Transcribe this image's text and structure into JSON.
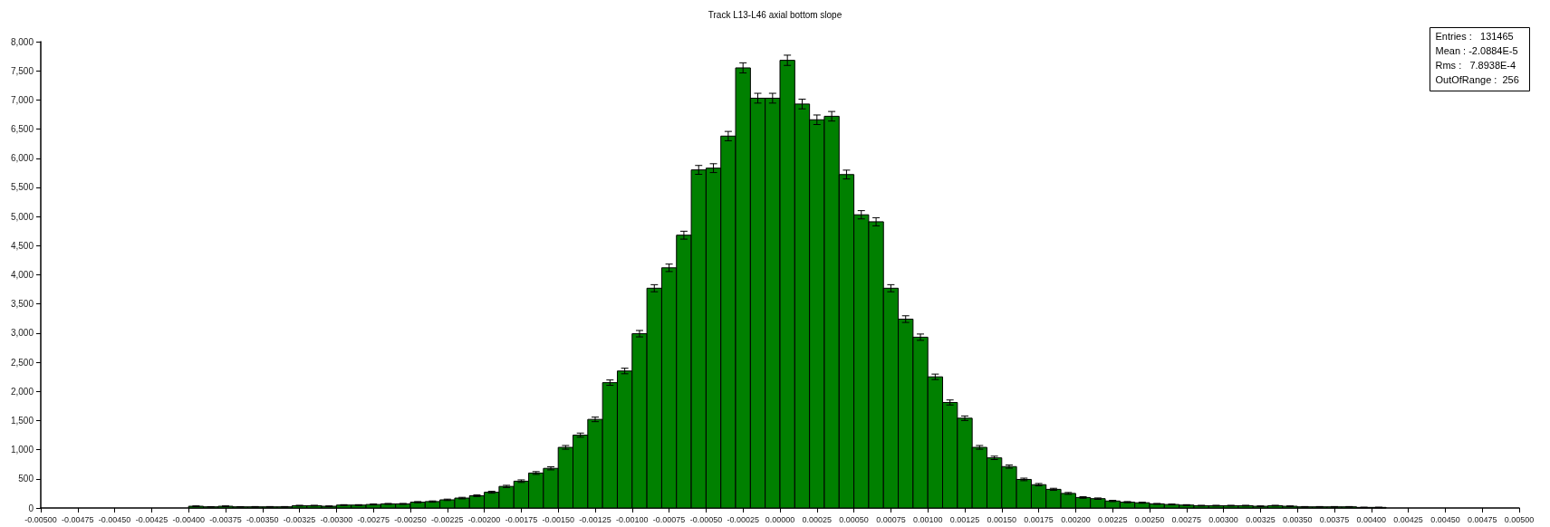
{
  "chart_data": {
    "type": "histogram",
    "title": "Track L13-L46 axial bottom slope",
    "color": "#008000",
    "bins": [
      -0.005,
      -0.0049,
      -0.0048,
      -0.0047,
      -0.0046,
      -0.0045,
      -0.0044,
      -0.0043,
      -0.0042,
      -0.0041,
      -0.004,
      -0.0039,
      -0.0038,
      -0.0037,
      -0.0036,
      -0.0035,
      -0.0034,
      -0.0033,
      -0.0032,
      -0.0031,
      -0.003,
      -0.0029,
      -0.0028,
      -0.0027,
      -0.0026,
      -0.0025,
      -0.0024,
      -0.0023,
      -0.0022,
      -0.0021,
      -0.002,
      -0.0019,
      -0.0018,
      -0.0017,
      -0.0016,
      -0.0015,
      -0.0014,
      -0.0013,
      -0.0012,
      -0.0011,
      -0.001,
      -0.0009,
      -0.0008,
      -0.0007,
      -0.0006,
      -0.0005,
      -0.0004,
      -0.0003,
      -0.0002,
      -0.0001,
      0,
      0.0001,
      0.0002,
      0.0003,
      0.0004,
      0.0005,
      0.0006,
      0.0007,
      0.0008,
      0.0009,
      0.001,
      0.0011,
      0.0012,
      0.0013,
      0.0014,
      0.0015,
      0.0016,
      0.0017,
      0.0018,
      0.0019,
      0.002,
      0.0021,
      0.0022,
      0.0023,
      0.0024,
      0.0025,
      0.0026,
      0.0027,
      0.0028,
      0.0029,
      0.003,
      0.0031,
      0.0032,
      0.0033,
      0.0034,
      0.0035,
      0.0036,
      0.0037,
      0.0038,
      0.0039,
      0.004,
      0.0041,
      0.0042,
      0.0043,
      0.0044,
      0.0045,
      0.0046,
      0.0047,
      0.0048,
      0.0049,
      0.005
    ],
    "values": [
      0,
      0,
      0,
      0,
      0,
      0,
      0,
      0,
      0,
      0,
      30,
      20,
      30,
      20,
      20,
      20,
      20,
      40,
      40,
      30,
      50,
      50,
      60,
      70,
      70,
      100,
      110,
      140,
      170,
      210,
      270,
      370,
      460,
      600,
      680,
      1040,
      1250,
      1520,
      2150,
      2350,
      2990,
      3770,
      4120,
      4680,
      5800,
      5830,
      6380,
      7550,
      7030,
      7030,
      7680,
      6930,
      6660,
      6720,
      5720,
      5030,
      4910,
      3770,
      3240,
      2930,
      2250,
      1810,
      1540,
      1040,
      860,
      710,
      490,
      400,
      320,
      250,
      180,
      160,
      120,
      100,
      90,
      70,
      60,
      50,
      40,
      40,
      40,
      40,
      30,
      40,
      30,
      20,
      20,
      20,
      20,
      10,
      10,
      0,
      0,
      0,
      0,
      0,
      0,
      0,
      0,
      0
    ],
    "errors": [
      null,
      null,
      null,
      null,
      null,
      null,
      null,
      null,
      null,
      null,
      5,
      4,
      5,
      4,
      5,
      5,
      5,
      6,
      6,
      5,
      7,
      7,
      8,
      8,
      8,
      10,
      11,
      12,
      13,
      14,
      16,
      19,
      22,
      24,
      26,
      32,
      35,
      39,
      46,
      48,
      55,
      61,
      64,
      68,
      76,
      76,
      80,
      87,
      84,
      84,
      88,
      83,
      82,
      82,
      76,
      71,
      70,
      61,
      57,
      54,
      47,
      43,
      39,
      32,
      29,
      27,
      22,
      20,
      18,
      16,
      13,
      12,
      11,
      10,
      9,
      8,
      7,
      7,
      6,
      6,
      6,
      6,
      5,
      6,
      5,
      5,
      5,
      5,
      5,
      4,
      4,
      null,
      null,
      null,
      null,
      null,
      null,
      null,
      null,
      null
    ],
    "xlim": [
      -0.005,
      0.005
    ],
    "xticks": [
      {
        "value": -0.005,
        "label": "-0.00500"
      },
      {
        "value": -0.00475,
        "label": "-0.00475"
      },
      {
        "value": -0.0045,
        "label": "-0.00450"
      },
      {
        "value": -0.00425,
        "label": "-0.00425"
      },
      {
        "value": -0.004,
        "label": "-0.00400"
      },
      {
        "value": -0.00375,
        "label": "-0.00375"
      },
      {
        "value": -0.0035,
        "label": "-0.00350"
      },
      {
        "value": -0.00325,
        "label": "-0.00325"
      },
      {
        "value": -0.003,
        "label": "-0.00300"
      },
      {
        "value": -0.00275,
        "label": "-0.00275"
      },
      {
        "value": -0.0025,
        "label": "-0.00250"
      },
      {
        "value": -0.00225,
        "label": "-0.00225"
      },
      {
        "value": -0.002,
        "label": "-0.00200"
      },
      {
        "value": -0.00175,
        "label": "-0.00175"
      },
      {
        "value": -0.0015,
        "label": "-0.00150"
      },
      {
        "value": -0.00125,
        "label": "-0.00125"
      },
      {
        "value": -0.001,
        "label": "-0.00100"
      },
      {
        "value": -0.00075,
        "label": "-0.00075"
      },
      {
        "value": -0.0005,
        "label": "-0.00050"
      },
      {
        "value": -0.00025,
        "label": "-0.00025"
      },
      {
        "value": 0,
        "label": "0.00000"
      },
      {
        "value": 0.00025,
        "label": "0.00025"
      },
      {
        "value": 0.0005,
        "label": "0.00050"
      },
      {
        "value": 0.00075,
        "label": "0.00075"
      },
      {
        "value": 0.001,
        "label": "0.00100"
      },
      {
        "value": 0.00125,
        "label": "0.00125"
      },
      {
        "value": 0.0015,
        "label": "0.00150"
      },
      {
        "value": 0.00175,
        "label": "0.00175"
      },
      {
        "value": 0.002,
        "label": "0.00200"
      },
      {
        "value": 0.00225,
        "label": "0.00225"
      },
      {
        "value": 0.0025,
        "label": "0.00250"
      },
      {
        "value": 0.00275,
        "label": "0.00275"
      },
      {
        "value": 0.003,
        "label": "0.00300"
      },
      {
        "value": 0.00325,
        "label": "0.00325"
      },
      {
        "value": 0.0035,
        "label": "0.00350"
      },
      {
        "value": 0.00375,
        "label": "0.00375"
      },
      {
        "value": 0.004,
        "label": "0.00400"
      },
      {
        "value": 0.00425,
        "label": "0.00425"
      },
      {
        "value": 0.0045,
        "label": "0.00450"
      },
      {
        "value": 0.00475,
        "label": "0.00475"
      },
      {
        "value": 0.005,
        "label": "0.00500"
      }
    ],
    "ylim": [
      0,
      8000
    ],
    "yticks": [
      0,
      {
        "value": 500,
        "label": "500"
      },
      {
        "value": 1000,
        "label": "1,000"
      },
      {
        "value": 1500,
        "label": "1,500"
      },
      {
        "value": 2000,
        "label": "2,000"
      },
      {
        "value": 2500,
        "label": "2,500"
      },
      {
        "value": 3000,
        "label": "3,000"
      },
      {
        "value": 3500,
        "label": "3,500"
      },
      {
        "value": 4000,
        "label": "4,000"
      },
      {
        "value": 4500,
        "label": "4,500"
      },
      {
        "value": 5000,
        "label": "5,000"
      },
      {
        "value": 5500,
        "label": "5,500"
      },
      {
        "value": 6000,
        "label": "6,000"
      },
      {
        "value": 6500,
        "label": "6,500"
      },
      {
        "value": 7000,
        "label": "7,000"
      },
      {
        "value": 7500,
        "label": "7,500"
      },
      {
        "value": 8000,
        "label": "8,000"
      }
    ],
    "annotations": [
      "Entries :   131465",
      "Mean : -2.0884E-5",
      "Rms :   7.8938E-4",
      "OutOfRange :  256"
    ],
    "grid": false
  }
}
